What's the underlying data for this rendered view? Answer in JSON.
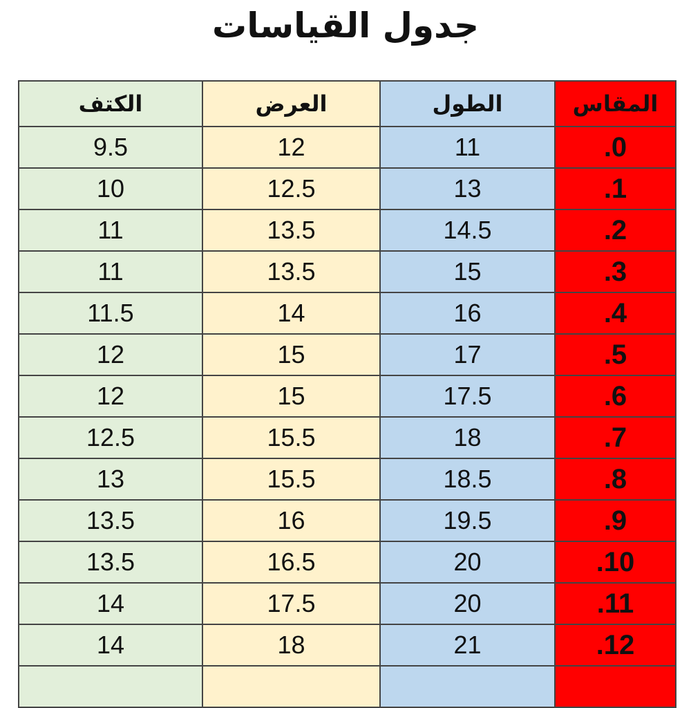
{
  "title": "جدول القياسات",
  "columns": {
    "shoulder": "الكتف",
    "width": "العرض",
    "length": "الطول",
    "size": "المقاس"
  },
  "colors": {
    "shoulder": "#e2efda",
    "width": "#fff2cc",
    "length": "#bdd7ee",
    "size": "#ff0000"
  },
  "rows": [
    {
      "size": ".0",
      "length": "11",
      "width": "12",
      "shoulder": "9.5"
    },
    {
      "size": ".1",
      "length": "13",
      "width": "12.5",
      "shoulder": "10"
    },
    {
      "size": ".2",
      "length": "14.5",
      "width": "13.5",
      "shoulder": "11"
    },
    {
      "size": ".3",
      "length": "15",
      "width": "13.5",
      "shoulder": "11"
    },
    {
      "size": ".4",
      "length": "16",
      "width": "14",
      "shoulder": "11.5"
    },
    {
      "size": ".5",
      "length": "17",
      "width": "15",
      "shoulder": "12"
    },
    {
      "size": ".6",
      "length": "17.5",
      "width": "15",
      "shoulder": "12"
    },
    {
      "size": ".7",
      "length": "18",
      "width": "15.5",
      "shoulder": "12.5"
    },
    {
      "size": ".8",
      "length": "18.5",
      "width": "15.5",
      "shoulder": "13"
    },
    {
      "size": ".9",
      "length": "19.5",
      "width": "16",
      "shoulder": "13.5"
    },
    {
      "size": ".10",
      "length": "20",
      "width": "16.5",
      "shoulder": "13.5"
    },
    {
      "size": ".11",
      "length": "20",
      "width": "17.5",
      "shoulder": "14"
    },
    {
      "size": ".12",
      "length": "21",
      "width": "18",
      "shoulder": "14"
    }
  ]
}
